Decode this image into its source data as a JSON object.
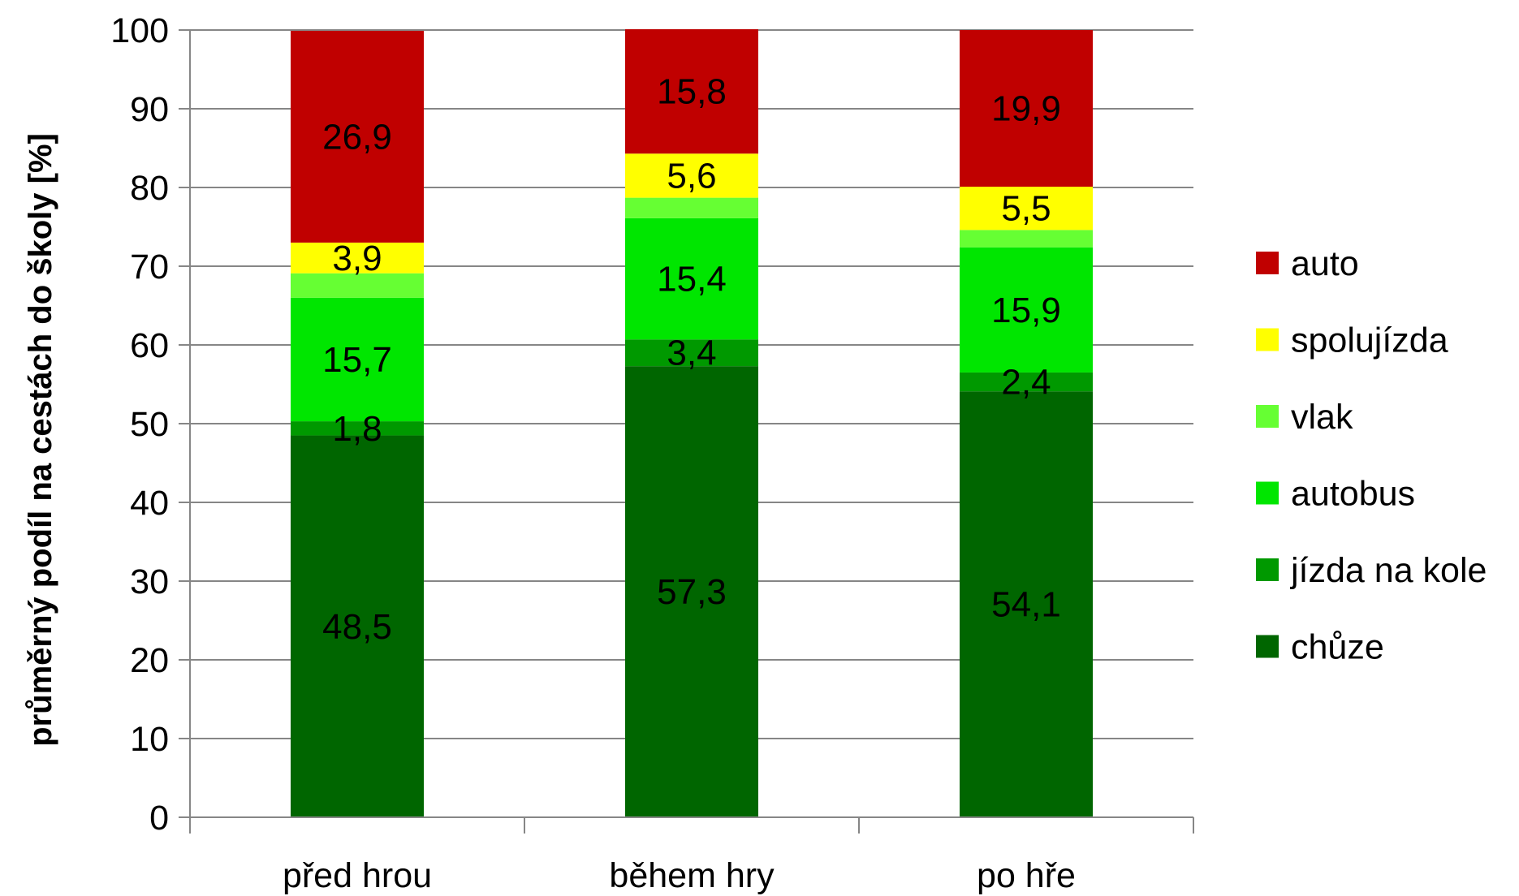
{
  "chart_data": {
    "type": "bar",
    "stacked": true,
    "title": "",
    "xlabel": "",
    "ylabel": "průměrný podíl na cestách do školy [%]",
    "ylim": [
      0,
      100
    ],
    "yticks": [
      0,
      10,
      20,
      30,
      40,
      50,
      60,
      70,
      80,
      90,
      100
    ],
    "grid": true,
    "legend_position": "right",
    "categories": [
      "před hrou",
      "během hry",
      "po hře"
    ],
    "series": [
      {
        "name": "chůze",
        "color": "#006600",
        "values": [
          48.5,
          57.3,
          54.1
        ],
        "labels": [
          "48,5",
          "57,3",
          "54,1"
        ]
      },
      {
        "name": "jízda na kole",
        "color": "#009900",
        "values": [
          1.8,
          3.4,
          2.4
        ],
        "labels": [
          "1,8",
          "3,4",
          "2,4"
        ]
      },
      {
        "name": "autobus",
        "color": "#00e600",
        "values": [
          15.7,
          15.4,
          15.9
        ],
        "labels": [
          "15,7",
          "15,4",
          "15,9"
        ]
      },
      {
        "name": "vlak",
        "color": "#66ff33",
        "values": [
          3.1,
          2.6,
          2.2
        ],
        "labels": [
          "",
          "",
          ""
        ]
      },
      {
        "name": "spolujízda",
        "color": "#ffff00",
        "values": [
          3.9,
          5.6,
          5.5
        ],
        "labels": [
          "3,9",
          "5,6",
          "5,5"
        ]
      },
      {
        "name": "auto",
        "color": "#c00000",
        "values": [
          26.9,
          15.8,
          19.9
        ],
        "labels": [
          "26,9",
          "15,8",
          "19,9"
        ]
      }
    ],
    "legend_order": [
      "auto",
      "spolujízda",
      "vlak",
      "autobus",
      "jízda na kole",
      "chůze"
    ]
  }
}
